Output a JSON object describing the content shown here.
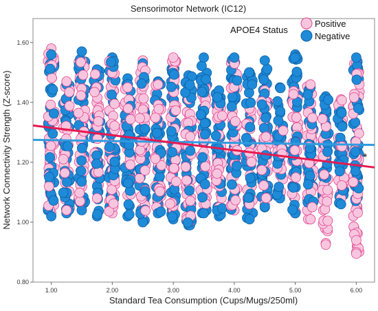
{
  "chart_data": {
    "type": "scatter",
    "title": "Sensorimotor Network (IC12)",
    "xlabel": "Standard Tea Consumption (Cups/Mugs/250ml)",
    "ylabel": "Network Connectivity Strength (Z-score)",
    "xlim": [
      0.7,
      6.3
    ],
    "ylim": [
      0.8,
      1.68
    ],
    "x_ticks": [
      "1.00",
      "2.00",
      "3.00",
      "4.00",
      "5.00",
      "6.00"
    ],
    "y_ticks": [
      "0.80",
      "1.00",
      "1.20",
      "1.40",
      "1.60"
    ],
    "legend_title": "APOE4 Status",
    "legend_placement": "top-right",
    "annotation": "*",
    "colors": {
      "positive_fill": "#f7c6de",
      "positive_stroke": "#e0458f",
      "negative_fill": "#1f8ad8",
      "negative_stroke": "#0b5fa5",
      "positive_line": "#e8194f",
      "negative_line": "#2f9be0"
    },
    "series": [
      {
        "name": "Negative",
        "color": "#1f8ad8",
        "columns": [
          {
            "x": 1.0,
            "ymin": 1.02,
            "ymax": 1.56
          },
          {
            "x": 1.25,
            "ymin": 1.03,
            "ymax": 1.46
          },
          {
            "x": 1.5,
            "ymin": 1.04,
            "ymax": 1.57
          },
          {
            "x": 1.75,
            "ymin": 1.02,
            "ymax": 1.51
          },
          {
            "x": 2.0,
            "ymin": 1.05,
            "ymax": 1.55
          },
          {
            "x": 2.25,
            "ymin": 1.02,
            "ymax": 1.48
          },
          {
            "x": 2.5,
            "ymin": 1.0,
            "ymax": 1.53
          },
          {
            "x": 2.75,
            "ymin": 1.03,
            "ymax": 1.47
          },
          {
            "x": 3.0,
            "ymin": 1.01,
            "ymax": 1.52
          },
          {
            "x": 3.25,
            "ymin": 0.99,
            "ymax": 1.49
          },
          {
            "x": 3.5,
            "ymin": 1.03,
            "ymax": 1.55
          },
          {
            "x": 3.75,
            "ymin": 1.02,
            "ymax": 1.44
          },
          {
            "x": 4.0,
            "ymin": 1.04,
            "ymax": 1.55
          },
          {
            "x": 4.25,
            "ymin": 1.01,
            "ymax": 1.5
          },
          {
            "x": 4.5,
            "ymin": 1.05,
            "ymax": 1.54
          },
          {
            "x": 4.75,
            "ymin": 1.08,
            "ymax": 1.45
          },
          {
            "x": 5.0,
            "ymin": 1.03,
            "ymax": 1.56
          },
          {
            "x": 5.25,
            "ymin": 1.06,
            "ymax": 1.45
          },
          {
            "x": 5.5,
            "ymin": 1.08,
            "ymax": 1.42
          },
          {
            "x": 5.75,
            "ymin": 1.06,
            "ymax": 1.37
          },
          {
            "x": 6.0,
            "ymin": 1.04,
            "ymax": 1.55
          }
        ],
        "fit_line": {
          "x": [
            0.7,
            6.3
          ],
          "y": [
            1.275,
            1.258
          ]
        }
      },
      {
        "name": "Positive",
        "color": "#f7c6de",
        "columns": [
          {
            "x": 1.0,
            "ymin": 1.03,
            "ymax": 1.58
          },
          {
            "x": 1.25,
            "ymin": 1.04,
            "ymax": 1.47
          },
          {
            "x": 1.5,
            "ymin": 1.07,
            "ymax": 1.54
          },
          {
            "x": 1.75,
            "ymin": 1.08,
            "ymax": 1.51
          },
          {
            "x": 2.0,
            "ymin": 1.03,
            "ymax": 1.55
          },
          {
            "x": 2.25,
            "ymin": 1.09,
            "ymax": 1.45
          },
          {
            "x": 2.5,
            "ymin": 1.03,
            "ymax": 1.54
          },
          {
            "x": 2.75,
            "ymin": 1.05,
            "ymax": 1.46
          },
          {
            "x": 3.0,
            "ymin": 1.04,
            "ymax": 1.55
          },
          {
            "x": 3.25,
            "ymin": 1.0,
            "ymax": 1.41
          },
          {
            "x": 3.5,
            "ymin": 1.06,
            "ymax": 1.46
          },
          {
            "x": 3.75,
            "ymin": 1.05,
            "ymax": 1.39
          },
          {
            "x": 4.0,
            "ymin": 1.04,
            "ymax": 1.54
          },
          {
            "x": 4.25,
            "ymin": 1.06,
            "ymax": 1.38
          },
          {
            "x": 4.5,
            "ymin": 1.06,
            "ymax": 1.44
          },
          {
            "x": 4.75,
            "ymin": 1.09,
            "ymax": 1.31
          },
          {
            "x": 5.0,
            "ymin": 1.03,
            "ymax": 1.44
          },
          {
            "x": 5.25,
            "ymin": 1.01,
            "ymax": 1.46
          },
          {
            "x": 5.5,
            "ymin": 0.93,
            "ymax": 1.38
          },
          {
            "x": 5.75,
            "ymin": 1.08,
            "ymax": 1.41
          },
          {
            "x": 6.0,
            "ymin": 0.9,
            "ymax": 1.53
          }
        ],
        "outliers": [
          {
            "x": 5.5,
            "y": 0.925
          },
          {
            "x": 6.0,
            "y": 0.94
          },
          {
            "x": 6.0,
            "y": 0.895
          },
          {
            "x": 5.25,
            "y": 1.01
          }
        ],
        "fit_line": {
          "x": [
            0.7,
            6.3
          ],
          "y": [
            1.323,
            1.183
          ]
        }
      }
    ]
  }
}
